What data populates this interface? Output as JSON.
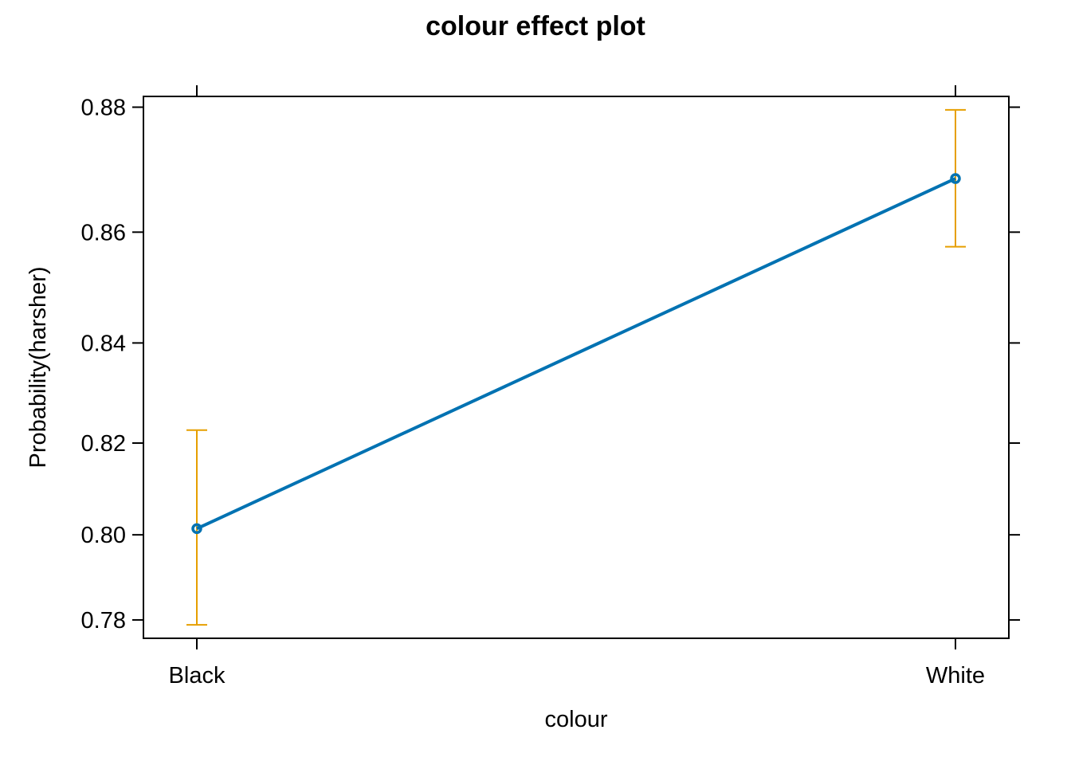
{
  "chart_data": {
    "type": "line",
    "title": "colour effect plot",
    "xlabel": "colour",
    "ylabel": "Probability(harsher)",
    "categories": [
      "Black",
      "White"
    ],
    "series": [
      {
        "values": [
          0.8014,
          0.8689
        ],
        "lower": [
          0.7788,
          0.8575
        ],
        "upper": [
          0.8227,
          0.8796
        ]
      }
    ],
    "y_ticks": [
      "0.78",
      "0.80",
      "0.82",
      "0.84",
      "0.86",
      "0.88"
    ],
    "y_tick_values": [
      0.78,
      0.8,
      0.82,
      0.84,
      0.86,
      0.88
    ],
    "y_scale": "logit",
    "ylim": [
      0.7755,
      0.8816
    ],
    "grid": false,
    "colors": {
      "line": "#0072b2",
      "errorbar": "#e69f00",
      "frame": "#000000"
    }
  }
}
